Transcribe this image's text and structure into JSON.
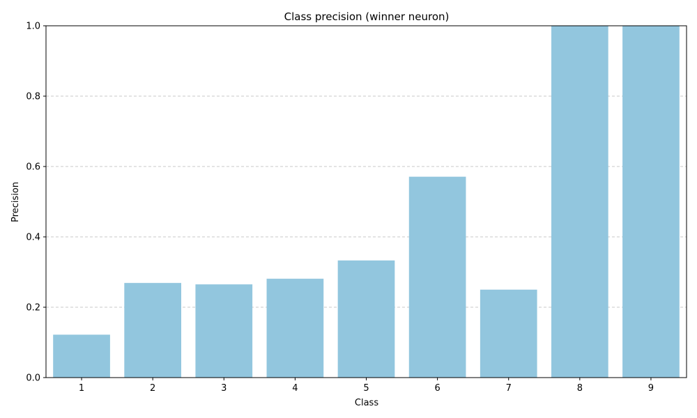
{
  "chart_data": {
    "type": "bar",
    "title": "Class precision (winner neuron)",
    "xlabel": "Class",
    "ylabel": "Precision",
    "categories": [
      "1",
      "2",
      "3",
      "4",
      "5",
      "6",
      "7",
      "8",
      "9"
    ],
    "values": [
      0.122,
      0.269,
      0.265,
      0.281,
      0.333,
      0.571,
      0.25,
      1.0,
      1.0
    ],
    "ylim": [
      0,
      1.0
    ],
    "yticks": [
      "0.0",
      "0.2",
      "0.4",
      "0.6",
      "0.8",
      "1.0"
    ],
    "grid": "y-dashed",
    "legend": "none",
    "colors": {
      "bar": "#92c6de"
    }
  }
}
